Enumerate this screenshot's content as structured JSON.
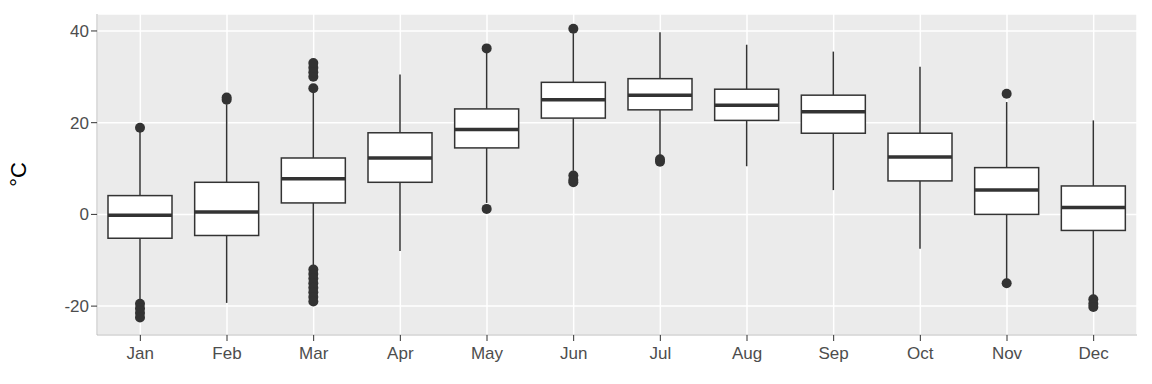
{
  "chart_data": {
    "type": "boxplot",
    "y_label": "°C",
    "categories": [
      "Jan",
      "Feb",
      "Mar",
      "Apr",
      "May",
      "Jun",
      "Jul",
      "Aug",
      "Sep",
      "Oct",
      "Nov",
      "Dec"
    ],
    "min": [
      -18.7,
      -19.3,
      -11.5,
      -8,
      2.5,
      9.5,
      12.5,
      10.5,
      5.3,
      -7.5,
      -14.5,
      -17.8
    ],
    "q1": [
      -5.2,
      -4.6,
      2.5,
      7,
      14.5,
      21,
      22.8,
      20.5,
      17.7,
      7.3,
      0,
      -3.5
    ],
    "median": [
      -0.2,
      0.5,
      7.8,
      12.3,
      18.5,
      25,
      26,
      23.8,
      22.4,
      12.5,
      5.3,
      1.5
    ],
    "q3": [
      4.1,
      7,
      12.3,
      17.8,
      23,
      28.8,
      29.6,
      27.3,
      26,
      17.7,
      10.2,
      6.2
    ],
    "max": [
      18,
      24,
      26.5,
      30.5,
      35.5,
      39.5,
      39.7,
      37,
      35.5,
      32.2,
      24.5,
      20.5
    ],
    "outliers": [
      [
        18.9,
        -19.5,
        -20.5,
        -21.5,
        -22.5
      ],
      [
        25,
        25.5
      ],
      [
        27.5,
        30,
        31,
        32,
        33,
        -12,
        -13,
        -14,
        -15,
        -16,
        -17,
        -18,
        -19
      ],
      [],
      [
        1.2,
        36.2
      ],
      [
        8.5,
        7.5,
        7,
        40.5
      ],
      [
        11.5,
        12
      ],
      [],
      [],
      [],
      [
        26.3,
        -15
      ],
      [
        -18.5,
        -19.5,
        -20.2
      ]
    ],
    "color": "#333333",
    "ylim": [
      -26.3,
      43.7
    ],
    "yticks": [
      -20,
      0,
      20,
      40
    ],
    "grid": true
  }
}
